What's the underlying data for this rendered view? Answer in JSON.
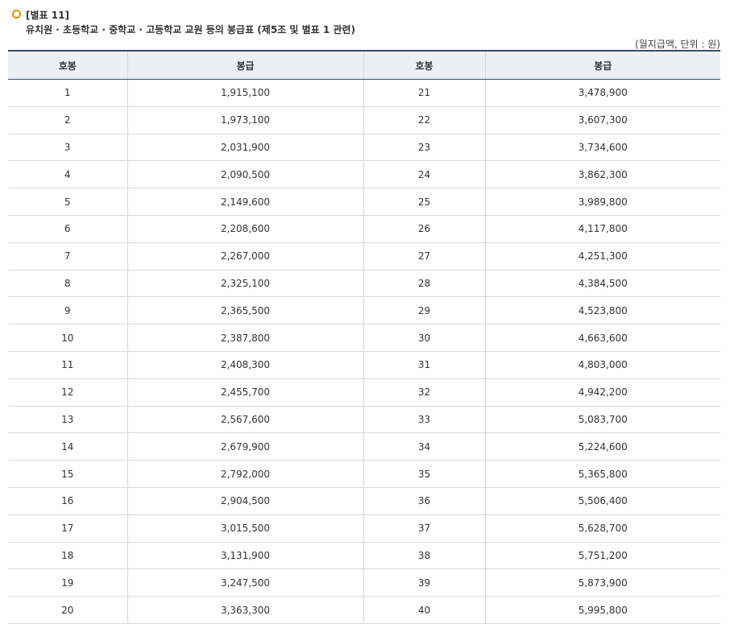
{
  "header": {
    "title": "[별표 11]",
    "subtitle": "유치원 · 초등학교 · 중학교 · 고등학교 교원 등의 봉급표 (제5조 및 별표 1 관련)",
    "unit": "(월지급액, 단위 : 원)"
  },
  "table": {
    "columns": [
      "호봉",
      "봉급",
      "호봉",
      "봉급"
    ],
    "rows": [
      [
        "1",
        "1,915,100",
        "21",
        "3,478,900"
      ],
      [
        "2",
        "1,973,100",
        "22",
        "3,607,300"
      ],
      [
        "3",
        "2,031,900",
        "23",
        "3,734,600"
      ],
      [
        "4",
        "2,090,500",
        "24",
        "3,862,300"
      ],
      [
        "5",
        "2,149,600",
        "25",
        "3,989,800"
      ],
      [
        "6",
        "2,208,600",
        "26",
        "4,117,800"
      ],
      [
        "7",
        "2,267,000",
        "27",
        "4,251,300"
      ],
      [
        "8",
        "2,325,100",
        "28",
        "4,384,500"
      ],
      [
        "9",
        "2,365,500",
        "29",
        "4,523,800"
      ],
      [
        "10",
        "2,387,800",
        "30",
        "4,663,600"
      ],
      [
        "11",
        "2,408,300",
        "31",
        "4,803,000"
      ],
      [
        "12",
        "2,455,700",
        "32",
        "4,942,200"
      ],
      [
        "13",
        "2,567,600",
        "33",
        "5,083,700"
      ],
      [
        "14",
        "2,679,900",
        "34",
        "5,224,600"
      ],
      [
        "15",
        "2,792,000",
        "35",
        "5,365,800"
      ],
      [
        "16",
        "2,904,500",
        "36",
        "5,506,400"
      ],
      [
        "17",
        "3,015,500",
        "37",
        "5,628,700"
      ],
      [
        "18",
        "3,131,900",
        "38",
        "5,751,200"
      ],
      [
        "19",
        "3,247,500",
        "39",
        "5,873,900"
      ],
      [
        "20",
        "3,363,300",
        "40",
        "5,995,800"
      ]
    ]
  }
}
